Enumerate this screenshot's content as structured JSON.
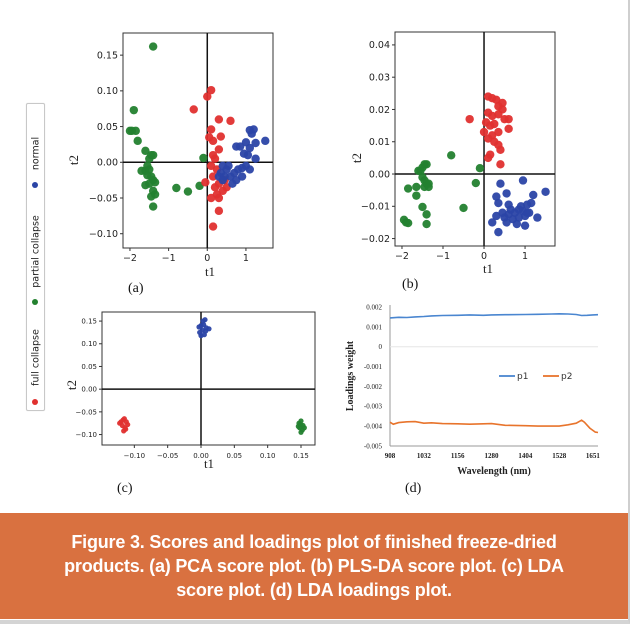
{
  "legend": {
    "items": [
      {
        "label": "normal",
        "color": "#2b45a6"
      },
      {
        "label": "partial collapse",
        "color": "#23812f"
      },
      {
        "label": "full collapse",
        "color": "#e0302f"
      }
    ]
  },
  "caption": "Figure 3. Scores and loadings plot of finished freeze-dried products. (a) PCA score plot. (b) PLS-DA score plot. (c) LDA score plot. (d) LDA loadings plot.",
  "chart_data": [
    {
      "type": "scatter",
      "panel_label": "(a)",
      "xlabel": "t1",
      "ylabel": "t2",
      "xlim": [
        -2.18,
        1.7
      ],
      "ylim": [
        -0.12,
        0.181
      ],
      "xticks": [
        -2,
        -1,
        0,
        1
      ],
      "xtick_labels": [
        "−2",
        "−1",
        "0",
        "1"
      ],
      "yticks": [
        -0.1,
        -0.05,
        0.0,
        0.05,
        0.1,
        0.15
      ],
      "ytick_labels": [
        "−0.10",
        "−0.05",
        "0.00",
        "0.05",
        "0.10",
        "0.15"
      ],
      "series": [
        {
          "class": "partial collapse",
          "color": "#23812f",
          "points": [
            [
              -1.4,
              0.162
            ],
            [
              -1.9,
              0.073
            ],
            [
              -1.95,
              0.044
            ],
            [
              -2.0,
              0.044
            ],
            [
              -1.85,
              0.044
            ],
            [
              -1.8,
              0.03
            ],
            [
              -1.6,
              0.016
            ],
            [
              -1.45,
              0.01
            ],
            [
              -1.5,
              0.005
            ],
            [
              -1.4,
              0.01
            ],
            [
              -1.6,
              -0.012
            ],
            [
              -1.5,
              -0.01
            ],
            [
              -1.45,
              -0.02
            ],
            [
              -1.55,
              -0.018
            ],
            [
              -1.4,
              -0.025
            ],
            [
              -1.35,
              -0.028
            ],
            [
              -1.5,
              -0.03
            ],
            [
              -1.6,
              -0.032
            ],
            [
              -1.4,
              -0.04
            ],
            [
              -1.35,
              -0.045
            ],
            [
              -1.45,
              -0.048
            ],
            [
              -1.4,
              -0.062
            ],
            [
              -0.8,
              -0.036
            ],
            [
              -0.5,
              -0.041
            ],
            [
              -0.2,
              -0.033
            ],
            [
              -0.1,
              0.006
            ],
            [
              -1.7,
              -0.012
            ],
            [
              -1.55,
              -0.005
            ]
          ]
        },
        {
          "class": "full collapse",
          "color": "#e0302f",
          "points": [
            [
              0.1,
              0.101
            ],
            [
              0.0,
              0.092
            ],
            [
              -0.35,
              0.074
            ],
            [
              0.3,
              0.06
            ],
            [
              0.6,
              0.058
            ],
            [
              0.1,
              0.046
            ],
            [
              0.05,
              0.035
            ],
            [
              0.15,
              0.03
            ],
            [
              0.35,
              0.036
            ],
            [
              0.3,
              0.018
            ],
            [
              0.2,
              0.005
            ],
            [
              0.15,
              0.01
            ],
            [
              0.1,
              -0.005
            ],
            [
              0.25,
              -0.01
            ],
            [
              0.15,
              -0.02
            ],
            [
              0.3,
              -0.03
            ],
            [
              0.5,
              -0.035
            ],
            [
              0.4,
              -0.04
            ],
            [
              0.25,
              -0.045
            ],
            [
              0.3,
              -0.05
            ],
            [
              0.1,
              -0.05
            ],
            [
              0.3,
              -0.068
            ],
            [
              0.15,
              -0.09
            ],
            [
              -0.05,
              -0.028
            ],
            [
              0.45,
              -0.025
            ],
            [
              0.2,
              -0.035
            ]
          ]
        },
        {
          "class": "normal",
          "color": "#2b45a6",
          "points": [
            [
              1.1,
              0.045
            ],
            [
              1.2,
              0.046
            ],
            [
              1.15,
              0.04
            ],
            [
              1.5,
              0.03
            ],
            [
              1.0,
              0.028
            ],
            [
              1.25,
              0.027
            ],
            [
              0.75,
              0.022
            ],
            [
              0.85,
              0.022
            ],
            [
              1.1,
              0.02
            ],
            [
              0.95,
              0.012
            ],
            [
              1.05,
              0.01
            ],
            [
              1.25,
              0.005
            ],
            [
              0.4,
              -0.005
            ],
            [
              0.5,
              -0.01
            ],
            [
              0.35,
              -0.015
            ],
            [
              0.45,
              -0.02
            ],
            [
              0.6,
              -0.02
            ],
            [
              0.7,
              -0.015
            ],
            [
              0.8,
              -0.01
            ],
            [
              0.9,
              -0.008
            ],
            [
              1.0,
              -0.005
            ],
            [
              0.55,
              -0.005
            ],
            [
              0.3,
              -0.02
            ],
            [
              0.4,
              -0.025
            ],
            [
              0.65,
              -0.03
            ],
            [
              0.9,
              -0.02
            ],
            [
              1.1,
              -0.01
            ],
            [
              0.75,
              -0.025
            ]
          ]
        }
      ]
    },
    {
      "type": "scatter",
      "panel_label": "(b)",
      "xlabel": "t1",
      "ylabel": "t2",
      "xlim": [
        -2.17,
        1.73
      ],
      "ylim": [
        -0.0223,
        0.044
      ],
      "xticks": [
        -2,
        -1,
        0,
        1
      ],
      "xtick_labels": [
        "−2",
        "−1",
        "0",
        "1"
      ],
      "yticks": [
        -0.02,
        -0.01,
        0.0,
        0.01,
        0.02,
        0.03,
        0.04
      ],
      "ytick_labels": [
        "−0.02",
        "−0.01",
        "0.00",
        "0.01",
        "0.02",
        "0.03",
        "0.04"
      ],
      "series": [
        {
          "class": "partial collapse",
          "color": "#23812f",
          "points": [
            [
              -1.5,
              0.002
            ],
            [
              -1.45,
              0.003
            ],
            [
              -1.4,
              0.003
            ],
            [
              -1.55,
              0.001
            ],
            [
              -1.6,
              0.001
            ],
            [
              -1.5,
              -0.001
            ],
            [
              -1.45,
              -0.002
            ],
            [
              -1.4,
              -0.003
            ],
            [
              -1.35,
              -0.003
            ],
            [
              -1.45,
              -0.004
            ],
            [
              -1.35,
              -0.004
            ],
            [
              -1.65,
              -0.004
            ],
            [
              -1.85,
              -0.0045
            ],
            [
              -1.65,
              -0.0067
            ],
            [
              -1.5,
              -0.0102
            ],
            [
              -1.4,
              -0.0125
            ],
            [
              -1.4,
              -0.0155
            ],
            [
              -1.95,
              -0.0142
            ],
            [
              -1.9,
              -0.015
            ],
            [
              -1.85,
              -0.0152
            ],
            [
              -0.8,
              0.0058
            ],
            [
              -0.5,
              -0.0105
            ],
            [
              -0.2,
              -0.0028
            ],
            [
              -0.1,
              0.0018
            ]
          ]
        },
        {
          "class": "full collapse",
          "color": "#e0302f",
          "points": [
            [
              0.1,
              0.024
            ],
            [
              0.2,
              0.0235
            ],
            [
              0.3,
              0.023
            ],
            [
              0.45,
              0.022
            ],
            [
              0.35,
              0.021
            ],
            [
              0.45,
              0.02
            ],
            [
              0.1,
              0.019
            ],
            [
              0.2,
              0.018
            ],
            [
              0.35,
              0.0185
            ],
            [
              0.5,
              0.017
            ],
            [
              0.6,
              0.017
            ],
            [
              -0.35,
              0.017
            ],
            [
              0.05,
              0.016
            ],
            [
              0.15,
              0.015
            ],
            [
              0.25,
              0.0155
            ],
            [
              0.6,
              0.014
            ],
            [
              0.0,
              0.013
            ],
            [
              0.2,
              0.012
            ],
            [
              0.35,
              0.013
            ],
            [
              0.1,
              0.011
            ],
            [
              0.25,
              0.01
            ],
            [
              0.35,
              0.009
            ],
            [
              0.4,
              0.0075
            ],
            [
              0.15,
              0.006
            ],
            [
              0.1,
              0.005
            ],
            [
              0.4,
              0.003
            ]
          ]
        },
        {
          "class": "normal",
          "color": "#2b45a6",
          "points": [
            [
              0.4,
              -0.003
            ],
            [
              0.95,
              -0.002
            ],
            [
              1.5,
              -0.0055
            ],
            [
              0.3,
              -0.007
            ],
            [
              0.55,
              -0.006
            ],
            [
              1.2,
              -0.0065
            ],
            [
              0.35,
              -0.009
            ],
            [
              0.6,
              -0.0095
            ],
            [
              0.9,
              -0.01
            ],
            [
              1.05,
              -0.0095
            ],
            [
              1.15,
              -0.009
            ],
            [
              0.45,
              -0.012
            ],
            [
              0.6,
              -0.0125
            ],
            [
              0.75,
              -0.012
            ],
            [
              0.85,
              -0.011
            ],
            [
              0.95,
              -0.0115
            ],
            [
              1.05,
              -0.012
            ],
            [
              0.3,
              -0.013
            ],
            [
              0.5,
              -0.0135
            ],
            [
              0.7,
              -0.014
            ],
            [
              0.85,
              -0.0135
            ],
            [
              1.0,
              -0.013
            ],
            [
              1.3,
              -0.0135
            ],
            [
              0.2,
              -0.015
            ],
            [
              0.55,
              -0.015
            ],
            [
              0.8,
              -0.0155
            ],
            [
              1.0,
              -0.016
            ],
            [
              0.35,
              -0.018
            ],
            [
              1.1,
              -0.012
            ],
            [
              0.65,
              -0.011
            ]
          ]
        }
      ]
    },
    {
      "type": "scatter",
      "panel_label": "(c)",
      "xlabel": "t1",
      "ylabel": "t2",
      "xlim": [
        -0.1485,
        0.171
      ],
      "ylim": [
        -0.123,
        0.17
      ],
      "xticks": [
        -0.1,
        -0.05,
        0.0,
        0.05,
        0.1,
        0.15
      ],
      "xtick_labels": [
        "−0.10",
        "−0.05",
        "0.00",
        "0.05",
        "0.10",
        "0.15"
      ],
      "yticks": [
        -0.1,
        -0.05,
        0.0,
        0.05,
        0.1,
        0.15
      ],
      "ytick_labels": [
        "−0.10",
        "−0.05",
        "0.00",
        "0.05",
        "0.10",
        "0.15"
      ],
      "series": [
        {
          "class": "normal",
          "color": "#2b45a6",
          "points": [
            [
              0.0,
              0.14
            ],
            [
              0.003,
              0.15
            ],
            [
              0.006,
              0.153
            ],
            [
              0.002,
              0.13
            ],
            [
              -0.002,
              0.125
            ],
            [
              0.005,
              0.12
            ],
            [
              0.008,
              0.135
            ],
            [
              0.012,
              0.133
            ],
            [
              0.0,
              0.118
            ],
            [
              0.004,
              0.142
            ],
            [
              -0.003,
              0.137
            ],
            [
              0.007,
              0.128
            ]
          ]
        },
        {
          "class": "full collapse",
          "color": "#e0302f",
          "points": [
            [
              -0.12,
              -0.072
            ],
            [
              -0.115,
              -0.065
            ],
            [
              -0.112,
              -0.072
            ],
            [
              -0.118,
              -0.08
            ],
            [
              -0.114,
              -0.085
            ],
            [
              -0.116,
              -0.092
            ],
            [
              -0.11,
              -0.078
            ],
            [
              -0.122,
              -0.075
            ],
            [
              -0.113,
              -0.088
            ],
            [
              -0.117,
              -0.068
            ]
          ]
        },
        {
          "class": "partial collapse",
          "color": "#23812f",
          "points": [
            [
              0.147,
              -0.075
            ],
            [
              0.15,
              -0.07
            ],
            [
              0.153,
              -0.08
            ],
            [
              0.148,
              -0.085
            ],
            [
              0.152,
              -0.09
            ],
            [
              0.15,
              -0.095
            ],
            [
              0.146,
              -0.082
            ],
            [
              0.155,
              -0.085
            ],
            [
              0.149,
              -0.078
            ]
          ]
        }
      ]
    },
    {
      "type": "line",
      "panel_label": "(d)",
      "xlabel": "Wavelength (nm)",
      "ylabel": "Loadings weight",
      "xlim": [
        908,
        1670
      ],
      "ylim": [
        -0.005,
        0.002
      ],
      "xticks": [
        908,
        1032,
        1156,
        1280,
        1404,
        1528,
        1651
      ],
      "xtick_labels": [
        "908",
        "1032",
        "1156",
        "1280",
        "1404",
        "1528",
        "1651"
      ],
      "yticks": [
        -0.005,
        -0.004,
        -0.003,
        -0.002,
        -0.001,
        0,
        0.001,
        0.002
      ],
      "ytick_labels": [
        "-0.005",
        "-0.004",
        "-0.003",
        "-0.002",
        "-0.001",
        "0",
        "0.001",
        "0.002"
      ],
      "legend_position": "center-right",
      "series": [
        {
          "name": "p1",
          "color": "#4a86d0",
          "x": [
            908,
            940,
            970,
            1000,
            1032,
            1060,
            1100,
            1156,
            1200,
            1250,
            1280,
            1330,
            1404,
            1450,
            1500,
            1528,
            1560,
            1590,
            1610,
            1630,
            1651,
            1670
          ],
          "y": [
            0.00145,
            0.00148,
            0.00147,
            0.0015,
            0.00152,
            0.00155,
            0.00157,
            0.00158,
            0.0016,
            0.00158,
            0.0016,
            0.00161,
            0.00162,
            0.00163,
            0.00165,
            0.00166,
            0.00165,
            0.00162,
            0.00157,
            0.00158,
            0.0016,
            0.00161
          ]
        },
        {
          "name": "p2",
          "color": "#e8742c",
          "x": [
            908,
            920,
            940,
            970,
            1000,
            1032,
            1060,
            1100,
            1156,
            1200,
            1250,
            1280,
            1330,
            1404,
            1450,
            1500,
            1528,
            1560,
            1590,
            1610,
            1620,
            1640,
            1660,
            1670
          ],
          "y": [
            -0.0038,
            -0.0039,
            -0.00382,
            -0.00378,
            -0.00377,
            -0.00385,
            -0.00383,
            -0.00387,
            -0.00388,
            -0.0039,
            -0.00388,
            -0.00387,
            -0.00396,
            -0.00398,
            -0.004,
            -0.004,
            -0.004,
            -0.00393,
            -0.00385,
            -0.0037,
            -0.0038,
            -0.0041,
            -0.0043,
            -0.00432
          ]
        }
      ]
    }
  ]
}
